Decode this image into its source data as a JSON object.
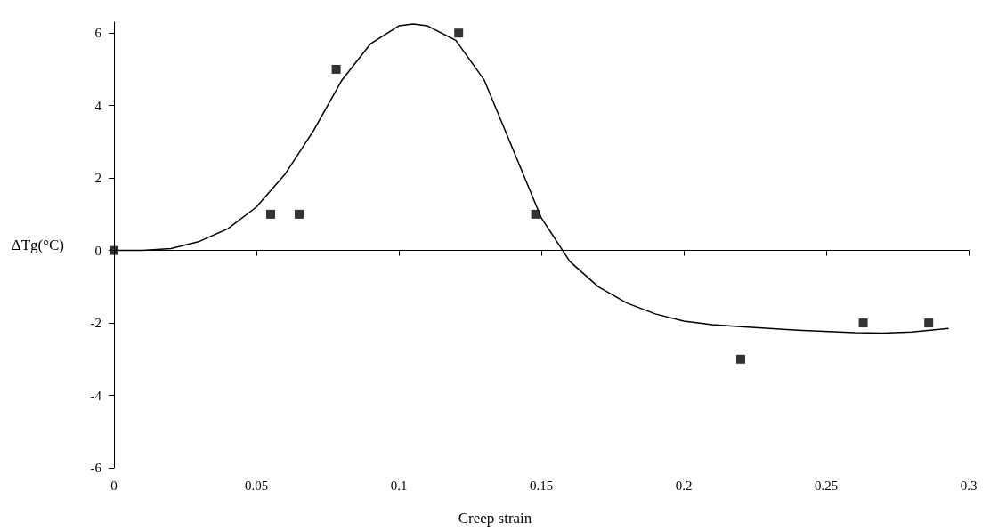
{
  "chart_data": {
    "type": "scatter",
    "ylabel": "ΔTg(°C)",
    "annotations": [
      "Creep strain"
    ],
    "xlim": [
      0,
      0.3
    ],
    "xticks": [
      0,
      0.05,
      0.1,
      0.15,
      0.2,
      0.25,
      0.3
    ],
    "ylim": [
      -6,
      6.3
    ],
    "yticks": [
      -6,
      -4,
      -2,
      0,
      2,
      4,
      6
    ],
    "marker": "square",
    "series": [
      {
        "color": "#000000",
        "x": [
          0,
          0.055,
          0.065,
          0.078,
          0.121,
          0.148,
          0.22,
          0.263,
          0.286
        ],
        "values": [
          0,
          1,
          1,
          5,
          6,
          1,
          -3,
          -2,
          -2
        ]
      },
      {
        "type": "line",
        "color": "#000000",
        "marker": "none",
        "line_style": "solid",
        "x": [
          0,
          0.01,
          0.02,
          0.03,
          0.04,
          0.05,
          0.06,
          0.07,
          0.08,
          0.09,
          0.1,
          0.105,
          0.11,
          0.12,
          0.13,
          0.14,
          0.15,
          0.16,
          0.17,
          0.18,
          0.19,
          0.2,
          0.21,
          0.22,
          0.24,
          0.26,
          0.27,
          0.28,
          0.293
        ],
        "values": [
          0,
          0,
          0.05,
          0.25,
          0.6,
          1.2,
          2.1,
          3.3,
          4.7,
          5.7,
          6.2,
          6.25,
          6.2,
          5.8,
          4.7,
          2.8,
          0.9,
          -0.3,
          -1.0,
          -1.45,
          -1.75,
          -1.95,
          -2.05,
          -2.1,
          -2.2,
          -2.27,
          -2.28,
          -2.25,
          -2.15
        ]
      }
    ]
  }
}
